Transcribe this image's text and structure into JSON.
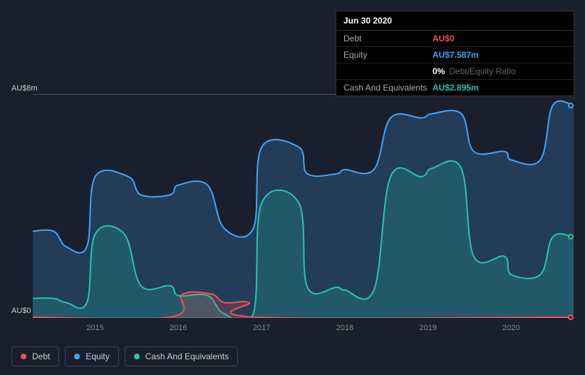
{
  "background_color": "#1a1f2e",
  "tooltip": {
    "date": "Jun 30 2020",
    "rows": [
      {
        "label": "Debt",
        "value": "AU$0",
        "color": "#ef5350"
      },
      {
        "label": "Equity",
        "value": "AU$7.587m",
        "color": "#42a5f5"
      },
      {
        "label": "",
        "value": "0%",
        "color": "#ffffff",
        "suffix": "Debt/Equity Ratio"
      },
      {
        "label": "Cash And Equivalents",
        "value": "AU$2.895m",
        "color": "#26c6a8"
      }
    ]
  },
  "chart": {
    "type": "area",
    "ylabel_top": "AU$8m",
    "ylabel_bottom": "AU$0",
    "ylim": [
      0,
      8
    ],
    "x_years": [
      "2015",
      "2016",
      "2017",
      "2018",
      "2019",
      "2020"
    ],
    "x_range": [
      2014.25,
      2020.75
    ],
    "plot_background": "#1a1f2e",
    "axis_color": "#555",
    "grid_color": "#2a3040",
    "label_color": "#888",
    "series": [
      {
        "name": "Equity",
        "color": "#42a5f5",
        "fill": "rgba(66,165,245,0.22)",
        "stroke_width": 2,
        "data": [
          [
            2014.25,
            3.1
          ],
          [
            2014.5,
            3.1
          ],
          [
            2014.65,
            2.55
          ],
          [
            2014.9,
            2.55
          ],
          [
            2015.0,
            5.05
          ],
          [
            2015.4,
            5.05
          ],
          [
            2015.55,
            4.4
          ],
          [
            2015.9,
            4.4
          ],
          [
            2016.0,
            4.75
          ],
          [
            2016.35,
            4.75
          ],
          [
            2016.55,
            3.2
          ],
          [
            2016.9,
            3.2
          ],
          [
            2017.0,
            6.1
          ],
          [
            2017.45,
            6.1
          ],
          [
            2017.55,
            5.15
          ],
          [
            2017.9,
            5.15
          ],
          [
            2018.0,
            5.3
          ],
          [
            2018.35,
            5.3
          ],
          [
            2018.55,
            7.15
          ],
          [
            2018.92,
            7.15
          ],
          [
            2019.05,
            7.3
          ],
          [
            2019.4,
            7.3
          ],
          [
            2019.55,
            5.95
          ],
          [
            2019.92,
            5.95
          ],
          [
            2020.0,
            5.65
          ],
          [
            2020.35,
            5.65
          ],
          [
            2020.5,
            7.6
          ],
          [
            2020.75,
            7.6
          ]
        ]
      },
      {
        "name": "Cash And Equivalents",
        "color": "#26c6a8",
        "fill": "rgba(38,198,168,0.22)",
        "stroke_width": 2,
        "data": [
          [
            2014.25,
            0.7
          ],
          [
            2014.5,
            0.7
          ],
          [
            2014.65,
            0.55
          ],
          [
            2014.9,
            0.55
          ],
          [
            2015.0,
            3.0
          ],
          [
            2015.35,
            3.0
          ],
          [
            2015.55,
            1.15
          ],
          [
            2015.9,
            1.15
          ],
          [
            2016.0,
            0.8
          ],
          [
            2016.35,
            0.8
          ],
          [
            2016.55,
            0.15
          ],
          [
            2016.9,
            0.15
          ],
          [
            2017.0,
            4.1
          ],
          [
            2017.45,
            4.1
          ],
          [
            2017.55,
            1.1
          ],
          [
            2017.9,
            1.1
          ],
          [
            2018.0,
            1.0
          ],
          [
            2018.35,
            1.0
          ],
          [
            2018.55,
            5.05
          ],
          [
            2018.92,
            5.05
          ],
          [
            2019.05,
            5.35
          ],
          [
            2019.4,
            5.35
          ],
          [
            2019.55,
            2.2
          ],
          [
            2019.92,
            2.2
          ],
          [
            2020.0,
            1.55
          ],
          [
            2020.35,
            1.55
          ],
          [
            2020.5,
            2.9
          ],
          [
            2020.75,
            2.9
          ]
        ]
      },
      {
        "name": "Debt",
        "color": "#ef5350",
        "fill": "rgba(239,83,80,0.22)",
        "stroke_width": 2,
        "data": [
          [
            2014.25,
            0.03
          ],
          [
            2015.9,
            0.03
          ],
          [
            2016.05,
            0.85
          ],
          [
            2016.4,
            0.85
          ],
          [
            2016.55,
            0.55
          ],
          [
            2016.85,
            0.55
          ],
          [
            2016.95,
            0.03
          ],
          [
            2020.75,
            0.03
          ]
        ]
      }
    ],
    "end_dots": [
      {
        "color": "#42a5f5",
        "y": 7.6
      },
      {
        "color": "#26c6a8",
        "y": 2.9
      },
      {
        "color": "#ef5350",
        "y": 0.03
      }
    ]
  },
  "legend": [
    {
      "label": "Debt",
      "color": "#ef5350"
    },
    {
      "label": "Equity",
      "color": "#42a5f5"
    },
    {
      "label": "Cash And Equivalents",
      "color": "#26c6a8"
    }
  ]
}
